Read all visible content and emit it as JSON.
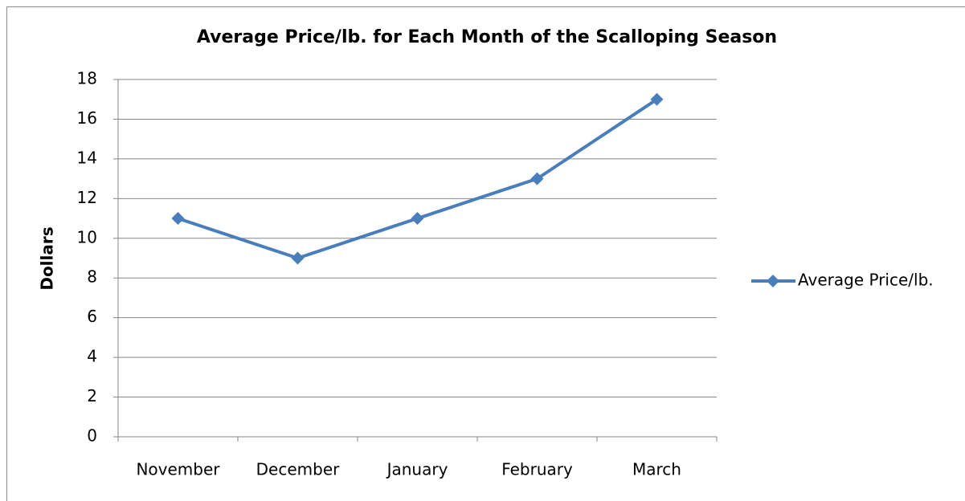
{
  "chart_data": {
    "type": "line",
    "title": "Average Price/lb. for Each Month of the Scalloping Season",
    "ylabel": "Dollars",
    "categories": [
      "November",
      "December",
      "January",
      "February",
      "March"
    ],
    "series": [
      {
        "name": "Average Price/lb.",
        "color": "#4a7ebb",
        "values": [
          11,
          9,
          11,
          13,
          17
        ]
      }
    ],
    "ylim": [
      0,
      18
    ],
    "yticks": [
      0,
      2,
      4,
      6,
      8,
      10,
      12,
      14,
      16,
      18
    ],
    "grid": true,
    "legend": "right"
  }
}
